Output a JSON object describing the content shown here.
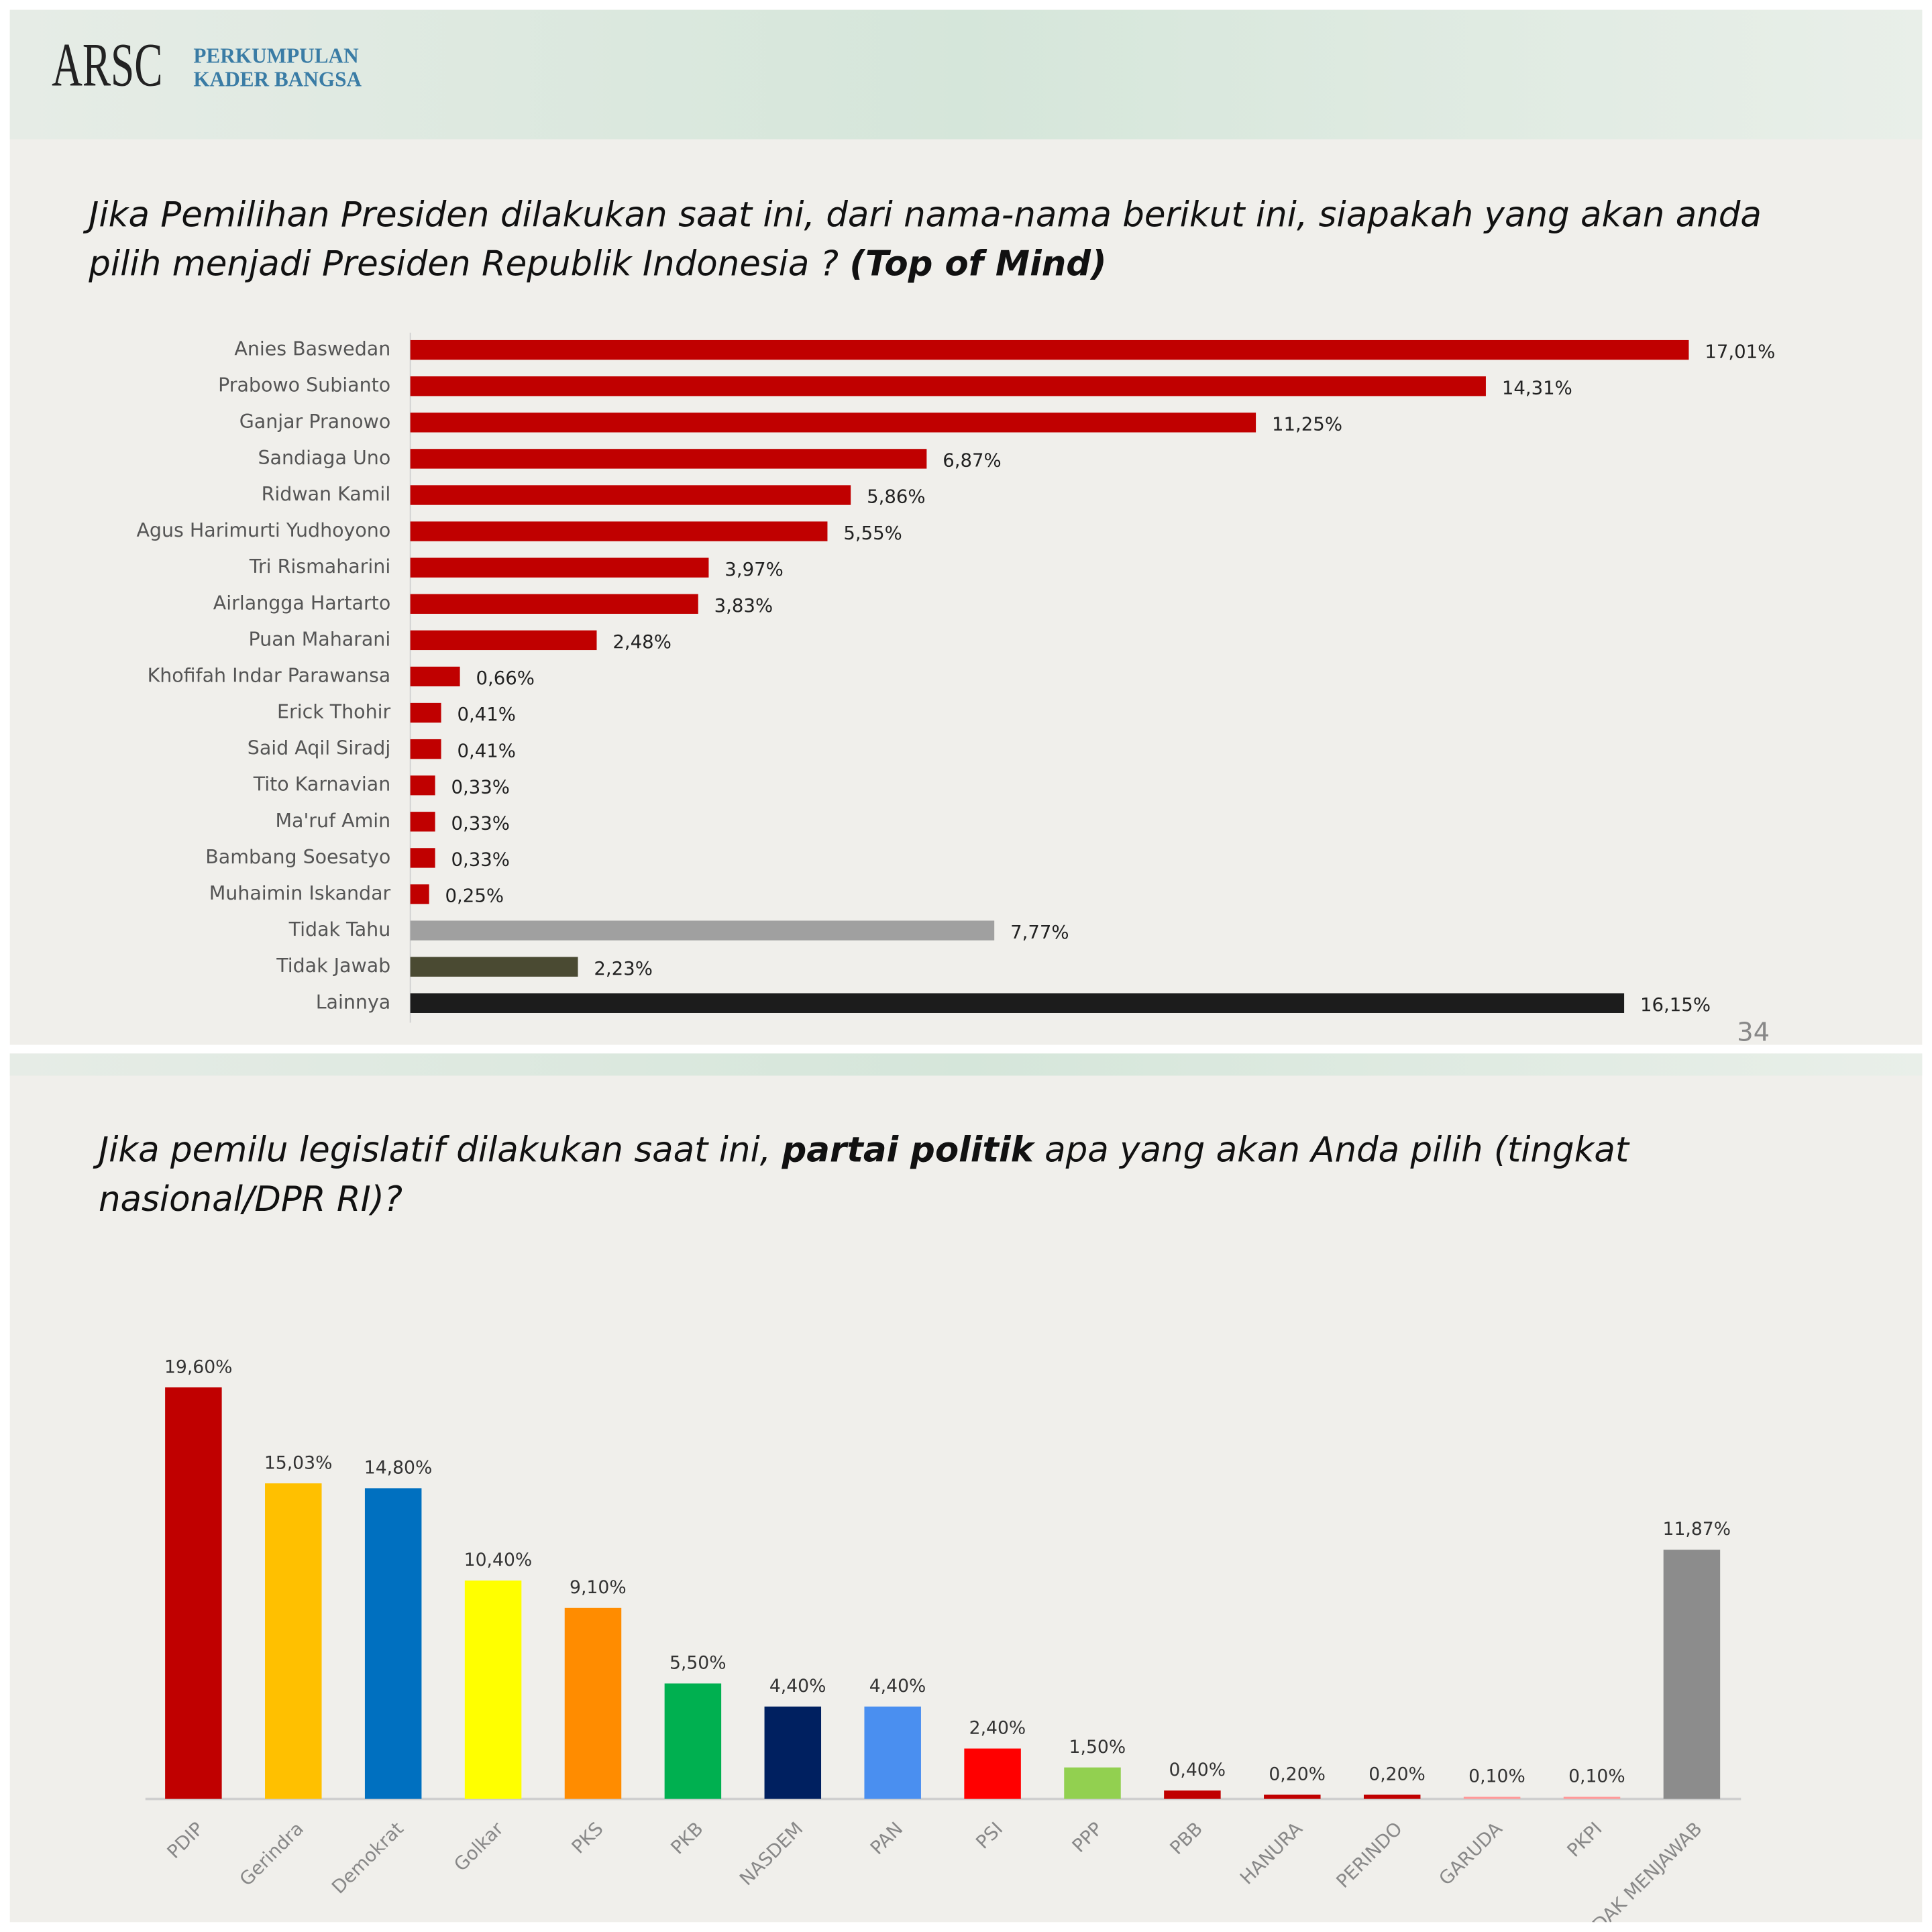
{
  "header": {
    "logo": "ARSC",
    "org": [
      "PERKUMPULAN",
      "KADER BANGSA"
    ],
    "page_number": "34"
  },
  "chart_data": [
    {
      "type": "hbar",
      "title": [
        "Jika Pemilihan Presiden dilakukan saat ini, dari nama-nama berikut ini, siapakah yang akan anda",
        "pilih menjadi Presiden Republik Indonesia ? ",
        "(Top of Mind)"
      ],
      "categories": [
        "Anies Baswedan",
        "Prabowo Subianto",
        "Ganjar Pranowo",
        "Sandiaga Uno",
        "Ridwan Kamil",
        "Agus Harimurti Yudhoyono",
        "Tri Rismaharini",
        "Airlangga Hartarto",
        "Puan Maharani",
        "Khofifah Indar Parawansa",
        "Erick Thohir",
        "Said Aqil Siradj",
        "Tito Karnavian",
        "Ma'ruf Amin",
        "Bambang Soesatyo",
        "Muhaimin Iskandar",
        "Tidak Tahu",
        "Tidak Jawab",
        "Lainnya"
      ],
      "values": [
        17.01,
        14.31,
        11.25,
        6.87,
        5.86,
        5.55,
        3.97,
        3.83,
        2.48,
        0.66,
        0.41,
        0.41,
        0.33,
        0.33,
        0.33,
        0.25,
        7.77,
        2.23,
        16.15
      ],
      "value_labels": [
        "17,01%",
        "14,31%",
        "11,25%",
        "6,87%",
        "5,86%",
        "5,55%",
        "3,97%",
        "3,83%",
        "2,48%",
        "0,66%",
        "0,41%",
        "0,41%",
        "0,33%",
        "0,33%",
        "0,33%",
        "0,25%",
        "7,77%",
        "2,23%",
        "16,15%"
      ],
      "colors": [
        "#c00000",
        "#c00000",
        "#c00000",
        "#c00000",
        "#c00000",
        "#c00000",
        "#c00000",
        "#c00000",
        "#c00000",
        "#c00000",
        "#c00000",
        "#c00000",
        "#c00000",
        "#c00000",
        "#c00000",
        "#c00000",
        "#a0a0a0",
        "#4a4a32",
        "#1c1c1c"
      ]
    },
    {
      "type": "bar",
      "title": [
        "Jika pemilu legislatif dilakukan saat ini, ",
        "partai politik",
        " apa yang akan Anda pilih (tingkat",
        "nasional/DPR RI)?"
      ],
      "categories": [
        "PDIP",
        "Gerindra",
        "Demokrat",
        "Golkar",
        "PKS",
        "PKB",
        "NASDEM",
        "PAN",
        "PSI",
        "PPP",
        "PBB",
        "HANURA",
        "PERINDO",
        "GARUDA",
        "PKPI",
        "TIDAK MENJAWAB"
      ],
      "values": [
        19.6,
        15.03,
        14.8,
        10.4,
        9.1,
        5.5,
        4.4,
        4.4,
        2.4,
        1.5,
        0.4,
        0.2,
        0.2,
        0.1,
        0.1,
        11.87
      ],
      "value_labels": [
        "19,60%",
        "15,03%",
        "14,80%",
        "10,40%",
        "9,10%",
        "5,50%",
        "4,40%",
        "4,40%",
        "2,40%",
        "1,50%",
        "0,40%",
        "0,20%",
        "0,20%",
        "0,10%",
        "0,10%",
        "11,87%"
      ],
      "colors": [
        "#c00000",
        "#ffc000",
        "#0070c0",
        "#ffff00",
        "#ff8c00",
        "#00b050",
        "#002060",
        "#4a8ff0",
        "#ff0000",
        "#92d050",
        "#c00000",
        "#c00000",
        "#c00000",
        "#ff9999",
        "#ff9999",
        "#8c8c8c"
      ]
    }
  ]
}
